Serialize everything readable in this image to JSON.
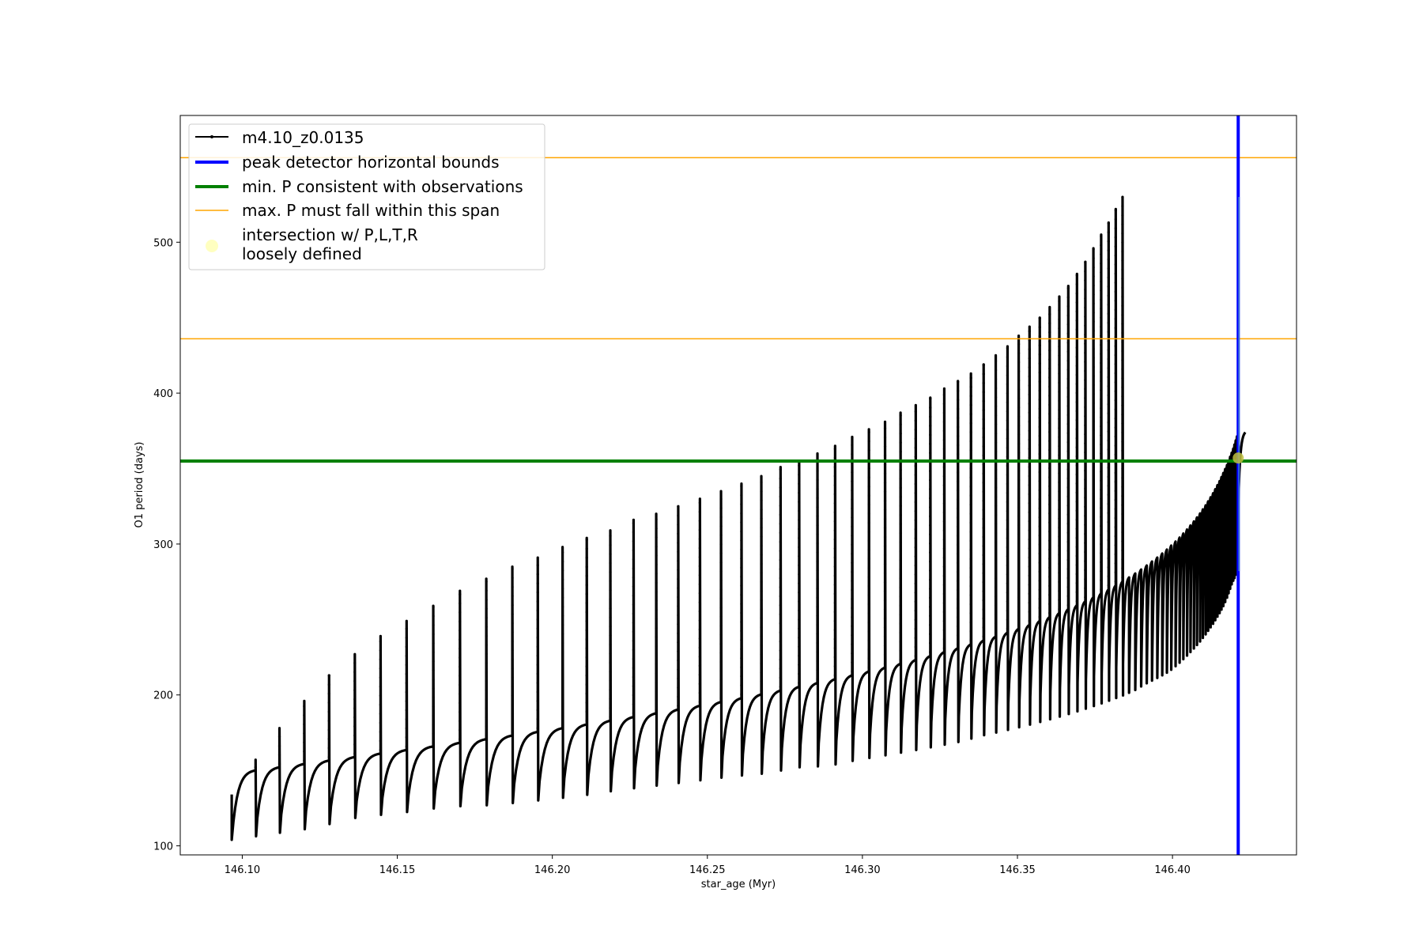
{
  "chart_data": {
    "type": "line",
    "xlabel": "star_age (Myr)",
    "ylabel": "O1 period (days)",
    "xlim": [
      146.08,
      146.44
    ],
    "ylim": [
      94,
      584
    ],
    "xticks": [
      146.1,
      146.15,
      146.2,
      146.25,
      146.3,
      146.35,
      146.4
    ],
    "xtick_labels": [
      "146.10",
      "146.15",
      "146.20",
      "146.25",
      "146.30",
      "146.35",
      "146.40"
    ],
    "yticks": [
      100,
      200,
      300,
      400,
      500
    ],
    "ytick_labels": [
      "100",
      "200",
      "300",
      "400",
      "500"
    ],
    "grid": false,
    "legend_position": "top-left",
    "colors": {
      "track": "#000000",
      "peak_bounds": "#0000ff",
      "min_p": "#008000",
      "max_p": "#ffa500",
      "intersection": "#ffffc0",
      "intersection_fill": "#bfbf3f"
    },
    "series": [
      {
        "name": "m4.10_z0.0135",
        "kind": "track",
        "start_x": 146.0962,
        "end_x": 146.4235,
        "pulse_ages": [
          146.0966,
          146.1043,
          146.112,
          146.12,
          146.128,
          146.1363,
          146.1446,
          146.153,
          146.1616,
          146.1702,
          146.1787,
          146.1871,
          146.1953,
          146.2033,
          146.2111,
          146.2187,
          146.2262,
          146.2335,
          146.2406,
          146.2476,
          146.2544,
          146.261,
          146.2674,
          146.2736,
          146.2796,
          146.2855,
          146.2912,
          146.2967,
          146.3021,
          146.3073,
          146.3123,
          146.3172,
          146.3219,
          146.3264,
          146.3308,
          146.335,
          146.3391,
          146.343,
          146.3468,
          146.3504,
          146.3539,
          146.3572,
          146.3604,
          146.3635,
          146.3664,
          146.3692,
          146.3719,
          146.3745,
          146.377,
          146.3794,
          146.3817,
          146.3839,
          146.386,
          146.388,
          146.3899,
          146.3917,
          146.3934,
          146.3951,
          146.3967,
          146.3982,
          146.3996,
          146.401,
          146.4023,
          146.4035,
          146.4047,
          146.4058,
          146.4069,
          146.4079,
          146.4089,
          146.4098,
          146.4107,
          146.4115,
          146.4123,
          146.4131,
          146.4138,
          146.4145,
          146.4152,
          146.4158,
          146.4164,
          146.417,
          146.4176,
          146.4181,
          146.4186,
          146.4191,
          146.4196,
          146.42,
          146.4204,
          146.4208
        ],
        "spike_peaks": [
          138,
          157,
          178,
          196,
          213,
          227,
          239,
          249,
          259,
          269,
          277,
          285,
          291,
          298,
          304,
          309,
          316,
          320,
          325,
          330,
          335,
          340,
          345,
          351,
          355,
          360,
          365,
          371,
          376,
          381,
          387,
          392,
          397,
          403,
          408,
          413,
          419,
          425,
          431,
          438,
          444,
          450,
          457,
          464,
          471,
          479,
          487,
          496,
          505,
          513,
          522,
          530
        ],
        "spike_troughs": [
          104,
          108,
          112,
          119,
          122,
          126,
          127,
          130,
          133,
          137,
          140,
          143,
          146,
          148,
          152,
          153,
          157,
          160,
          163,
          166,
          169,
          173,
          176,
          179,
          182,
          185,
          188,
          191,
          194,
          197,
          200,
          203,
          207,
          210,
          213,
          216,
          220,
          224,
          228,
          232,
          236,
          240,
          244,
          248,
          252,
          256,
          260,
          265,
          270,
          275,
          278,
          282
        ],
        "envelope_top_start": 150,
        "envelope_top_end": 374
      },
      {
        "name": "peak detector horizontal bounds",
        "kind": "vline",
        "x": 146.4212
      },
      {
        "name": "min. P consistent with observations",
        "kind": "hline",
        "y": 355
      },
      {
        "name": "max. P must fall within this span",
        "kind": "hlines",
        "y": [
          436,
          556
        ]
      },
      {
        "name": "intersection w/ P,L,T,R",
        "name_line2": "loosely defined",
        "kind": "point",
        "x": 146.4212,
        "y": 357
      }
    ]
  }
}
